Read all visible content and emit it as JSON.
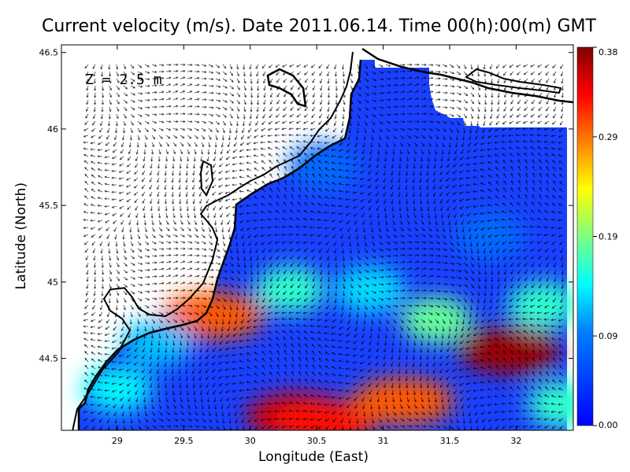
{
  "chart_data": {
    "type": "heatmap",
    "title": "Current velocity (m/s). Date 2011.06.14. Time 00(h):00(m) GMT",
    "annotation": "Z = 2.5 m",
    "xlabel": "Longitude (East)",
    "ylabel": "Latitude (North)",
    "xlim": [
      28.58,
      32.43
    ],
    "ylim": [
      44.03,
      46.55
    ],
    "xticks": [
      "29",
      "29.5",
      "30",
      "30.5",
      "31",
      "31.5",
      "32"
    ],
    "yticks": [
      "44.5",
      "45",
      "45.5",
      "46",
      "46.5"
    ],
    "colorbar": {
      "min": 0.0,
      "max": 0.38,
      "ticks": [
        "0.00",
        "0.09",
        "0.19",
        "0.29",
        "0.38"
      ],
      "colormap": "jet"
    },
    "hotspots": [
      {
        "lon": 31.95,
        "lat": 44.55,
        "speed": 0.37
      },
      {
        "lon": 30.35,
        "lat": 44.12,
        "speed": 0.35
      },
      {
        "lon": 30.55,
        "lat": 44.08,
        "speed": 0.33
      },
      {
        "lon": 31.15,
        "lat": 44.22,
        "speed": 0.3
      },
      {
        "lon": 29.72,
        "lat": 44.78,
        "speed": 0.3
      },
      {
        "lon": 29.0,
        "lat": 44.3,
        "speed": 0.14
      },
      {
        "lon": 29.3,
        "lat": 44.6,
        "speed": 0.12
      },
      {
        "lon": 30.3,
        "lat": 44.95,
        "speed": 0.16
      },
      {
        "lon": 30.9,
        "lat": 44.95,
        "speed": 0.13
      },
      {
        "lon": 31.4,
        "lat": 44.75,
        "speed": 0.18
      },
      {
        "lon": 32.35,
        "lat": 44.2,
        "speed": 0.16
      },
      {
        "lon": 32.2,
        "lat": 44.85,
        "speed": 0.16
      },
      {
        "lon": 30.55,
        "lat": 45.75,
        "speed": 0.08
      },
      {
        "lon": 31.8,
        "lat": 45.3,
        "speed": 0.08
      }
    ]
  }
}
